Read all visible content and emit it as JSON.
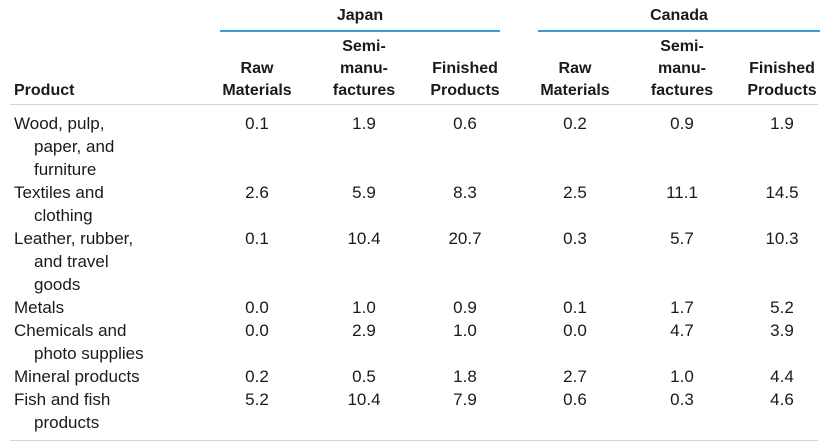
{
  "groups": [
    {
      "label": "Japan"
    },
    {
      "label": "Canada"
    }
  ],
  "column_headers": {
    "product": "Product",
    "raw": "Raw\nMaterials",
    "semi": "Semi-\nmanu-\nfactures",
    "finished": "Finished\nProducts"
  },
  "colors": {
    "rule": "#3a9bd5"
  },
  "rows": [
    {
      "first": "Wood, pulp,",
      "rest": [
        "paper, and",
        "furniture"
      ],
      "values": [
        "0.1",
        "1.9",
        "0.6",
        "0.2",
        "0.9",
        "1.9"
      ]
    },
    {
      "first": "Textiles and",
      "rest": [
        "clothing"
      ],
      "values": [
        "2.6",
        "5.9",
        "8.3",
        "2.5",
        "11.1",
        "14.5"
      ]
    },
    {
      "first": "Leather, rubber,",
      "rest": [
        "and travel",
        "goods"
      ],
      "values": [
        "0.1",
        "10.4",
        "20.7",
        "0.3",
        "5.7",
        "10.3"
      ]
    },
    {
      "first": "Metals",
      "rest": [],
      "values": [
        "0.0",
        "1.0",
        "0.9",
        "0.1",
        "1.7",
        "5.2"
      ]
    },
    {
      "first": "Chemicals and",
      "rest": [
        "photo supplies"
      ],
      "values": [
        "0.0",
        "2.9",
        "1.0",
        "0.0",
        "4.7",
        "3.9"
      ]
    },
    {
      "first": "Mineral products",
      "rest": [],
      "values": [
        "0.2",
        "0.5",
        "1.8",
        "2.7",
        "1.0",
        "4.4"
      ]
    },
    {
      "first": "Fish and fish",
      "rest": [
        "products"
      ],
      "values": [
        "5.2",
        "10.4",
        "7.9",
        "0.6",
        "0.3",
        "4.6"
      ]
    }
  ]
}
